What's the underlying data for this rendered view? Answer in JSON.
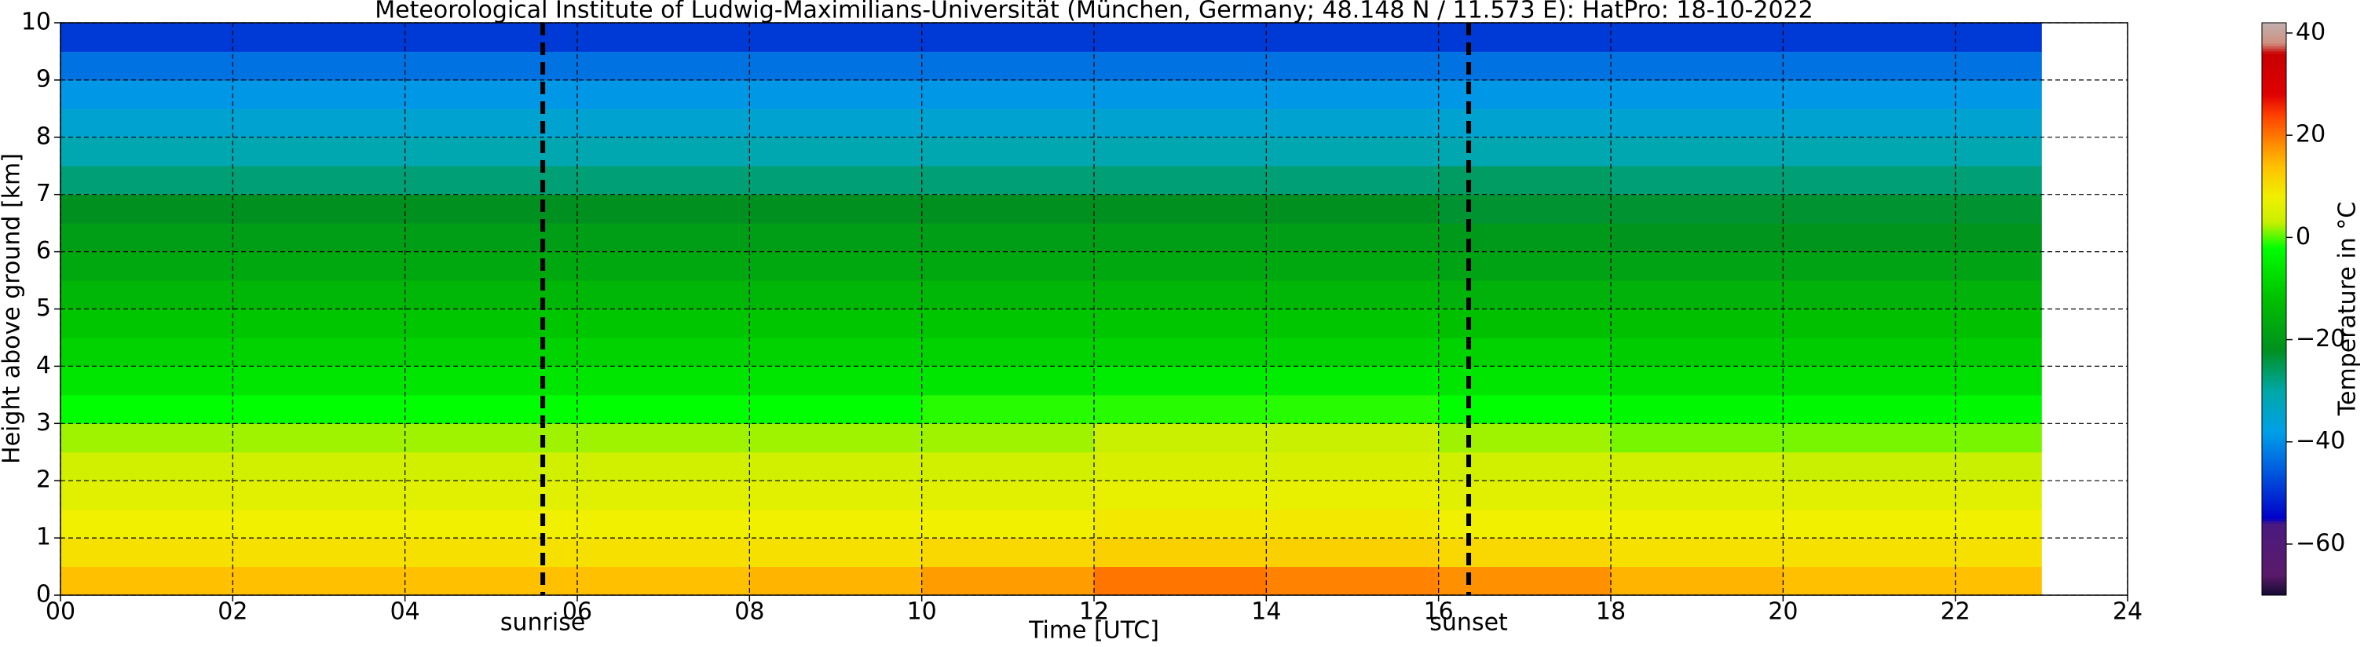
{
  "chart_data": {
    "type": "heatmap",
    "title": "Meteorological Institute of Ludwig-Maximilians-Universität (München, Germany; 48.148 N / 11.573 E):    HatPro: 18-10-2022",
    "xlabel": "Time [UTC]",
    "ylabel": "Height above ground [km]",
    "colorbar_label": "Temperature in °C",
    "x_edges": [
      0,
      2,
      4,
      6,
      8,
      10,
      12,
      14,
      16,
      18,
      20,
      22,
      23
    ],
    "y_edges": [
      0,
      0.5,
      1,
      1.5,
      2,
      2.5,
      3,
      3.5,
      4,
      4.5,
      5,
      5.5,
      6,
      6.5,
      7,
      7.5,
      8,
      8.5,
      9,
      9.5,
      10
    ],
    "values": [
      [
        14,
        14,
        14,
        14,
        15,
        17,
        20,
        19,
        18,
        15,
        14,
        14
      ],
      [
        10,
        10,
        10,
        10,
        10,
        11,
        12,
        12,
        11,
        10,
        10,
        10
      ],
      [
        8,
        8,
        8,
        8,
        8,
        8,
        9,
        9,
        8,
        8,
        8,
        8
      ],
      [
        6,
        6,
        6,
        6,
        6,
        6,
        7,
        7,
        6,
        6,
        6,
        6
      ],
      [
        4,
        4,
        4,
        4,
        4,
        4,
        5,
        5,
        4,
        4,
        3,
        3
      ],
      [
        2,
        2,
        2,
        2,
        2,
        2,
        3,
        3,
        2,
        1,
        1,
        1
      ],
      [
        -2,
        -2,
        -2,
        -2,
        -2,
        -1,
        -1,
        -1,
        -2,
        -3,
        -3,
        -3
      ],
      [
        -6,
        -6,
        -6,
        -6,
        -6,
        -6,
        -5,
        -5,
        -6,
        -7,
        -7,
        -7
      ],
      [
        -9,
        -9,
        -9,
        -9,
        -9,
        -9,
        -9,
        -9,
        -9,
        -10,
        -10,
        -10
      ],
      [
        -11,
        -11,
        -11,
        -11,
        -11,
        -11,
        -11,
        -11,
        -12,
        -12,
        -12,
        -12
      ],
      [
        -14,
        -14,
        -14,
        -14,
        -14,
        -14,
        -14,
        -14,
        -15,
        -15,
        -15,
        -15
      ],
      [
        -17,
        -17,
        -17,
        -17,
        -17,
        -17,
        -17,
        -17,
        -18,
        -18,
        -18,
        -18
      ],
      [
        -19,
        -19,
        -19,
        -19,
        -19,
        -19,
        -19,
        -19,
        -20,
        -21,
        -21,
        -21
      ],
      [
        -22,
        -22,
        -22,
        -22,
        -22,
        -22,
        -22,
        -22,
        -23,
        -23,
        -23,
        -23
      ],
      [
        -27,
        -27,
        -27,
        -27,
        -27,
        -27,
        -27,
        -27,
        -26,
        -27,
        -27,
        -27
      ],
      [
        -31,
        -31,
        -31,
        -31,
        -31,
        -31,
        -31,
        -31,
        -31,
        -31,
        -31,
        -31
      ],
      [
        -35,
        -35,
        -35,
        -35,
        -35,
        -35,
        -35,
        -35,
        -35,
        -35,
        -35,
        -35
      ],
      [
        -39,
        -39,
        -39,
        -39,
        -39,
        -39,
        -39,
        -39,
        -39,
        -39,
        -39,
        -39
      ],
      [
        -43,
        -43,
        -43,
        -43,
        -43,
        -43,
        -43,
        -43,
        -43,
        -43,
        -43,
        -43
      ],
      [
        -49,
        -49,
        -49,
        -49,
        -49,
        -49,
        -49,
        -49,
        -49,
        -49,
        -49,
        -49
      ]
    ],
    "xlim": [
      0,
      24
    ],
    "ylim": [
      0,
      10
    ],
    "xticks": [
      {
        "value": 0,
        "label": "00"
      },
      {
        "value": 2,
        "label": "02"
      },
      {
        "value": 4,
        "label": "04"
      },
      {
        "value": 6,
        "label": "06"
      },
      {
        "value": 8,
        "label": "08"
      },
      10,
      12,
      14,
      16,
      18,
      20,
      22,
      24
    ],
    "yticks": [
      0,
      1,
      2,
      3,
      4,
      5,
      6,
      7,
      8,
      9,
      10
    ],
    "clim": [
      -70,
      42
    ],
    "cticks": [
      {
        "value": -60,
        "label": "−60"
      },
      {
        "value": -40,
        "label": "−40"
      },
      {
        "value": -20,
        "label": "−20"
      },
      0,
      20,
      40
    ],
    "colormap": [
      {
        "value": -70,
        "color": "#140a30"
      },
      {
        "value": -66,
        "color": "#5a1a6a"
      },
      {
        "value": -56,
        "color": "#4a1a80"
      },
      {
        "value": -55,
        "color": "#0000c8"
      },
      {
        "value": -45,
        "color": "#0060e0"
      },
      {
        "value": -38,
        "color": "#00a0e8"
      },
      {
        "value": -30,
        "color": "#00a8a8"
      },
      {
        "value": -22,
        "color": "#009020"
      },
      {
        "value": -12,
        "color": "#00c000"
      },
      {
        "value": -2,
        "color": "#00ff00"
      },
      {
        "value": 3,
        "color": "#c8f000"
      },
      {
        "value": 8,
        "color": "#f0f000"
      },
      {
        "value": 14,
        "color": "#ffc000"
      },
      {
        "value": 18,
        "color": "#ff9000"
      },
      {
        "value": 24,
        "color": "#ff4000"
      },
      {
        "value": 28,
        "color": "#e00000"
      },
      {
        "value": 36,
        "color": "#c80000"
      },
      {
        "value": 38,
        "color": "#d09080"
      },
      {
        "value": 42,
        "color": "#c0b0b0"
      }
    ],
    "grid": true,
    "annotations": [
      {
        "x": 5.6,
        "label": "sunrise"
      },
      {
        "x": 16.35,
        "label": "sunset"
      }
    ]
  }
}
